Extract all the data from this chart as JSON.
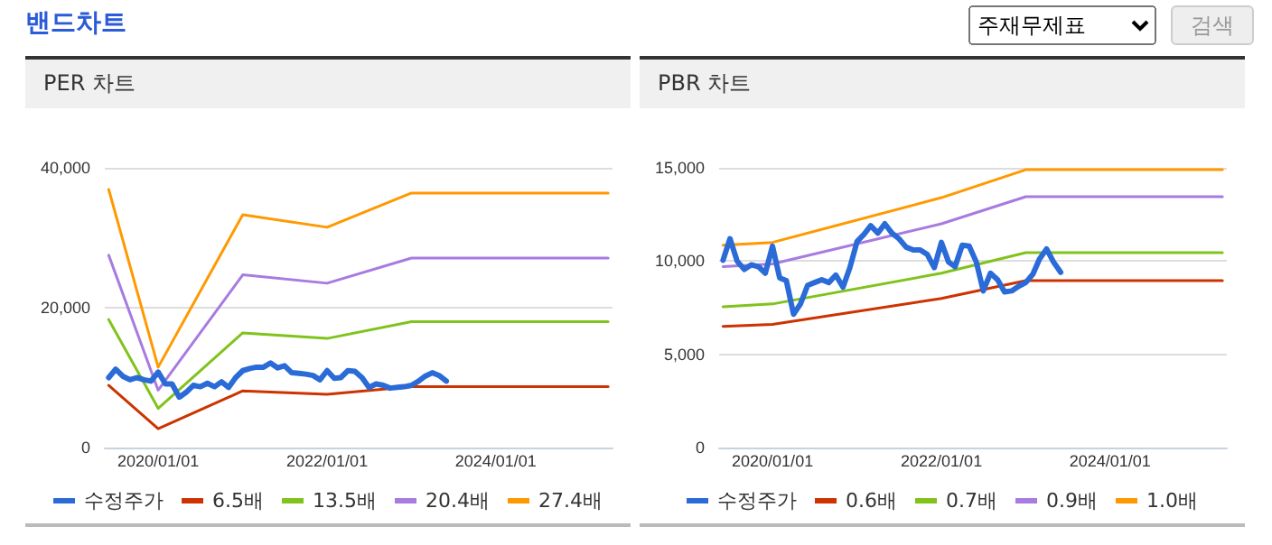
{
  "chart_data": [
    {
      "type": "other",
      "title": "밴드차트",
      "annotations": [
        "주재무제표",
        "검색"
      ]
    },
    {
      "type": "line",
      "title": "PER 차트",
      "legend": "bottom",
      "grid": "y",
      "marker": "none",
      "line_style": "solid",
      "xlim": [
        "2019-05-15",
        "2025-05-20"
      ],
      "xticks": [
        {
          "value": "2020-01-01",
          "label": "2020/01/01"
        },
        {
          "value": "2022-01-01",
          "label": "2022/01/01"
        },
        {
          "value": "2024-01-01",
          "label": "2024/01/01"
        }
      ],
      "ylim": [
        0,
        40000
      ],
      "yticks": [
        0,
        {
          "value": 20000,
          "label": "20,000"
        },
        {
          "value": 40000,
          "label": "40,000"
        }
      ],
      "series": [
        {
          "name": "수정주가",
          "color": "#2a6bd8",
          "x": [
            "2019-06",
            "2019-07",
            "2019-08",
            "2019-09",
            "2019-10",
            "2019-11",
            "2019-12",
            "2020-01",
            "2020-02",
            "2020-03",
            "2020-04",
            "2020-05",
            "2020-06",
            "2020-07",
            "2020-08",
            "2020-09",
            "2020-10",
            "2020-11",
            "2020-12",
            "2021-01",
            "2021-02",
            "2021-03",
            "2021-04",
            "2021-05",
            "2021-06",
            "2021-07",
            "2021-08",
            "2021-09",
            "2021-10",
            "2021-11",
            "2021-12",
            "2022-01",
            "2022-02",
            "2022-03",
            "2022-04",
            "2022-05",
            "2022-06",
            "2022-07",
            "2022-08",
            "2022-09",
            "2022-10",
            "2022-11",
            "2022-12",
            "2023-01",
            "2023-02",
            "2023-03",
            "2023-04",
            "2023-05",
            "2023-06"
          ],
          "values": [
            10000,
            11200,
            10200,
            9700,
            10000,
            9700,
            9500,
            10800,
            9100,
            9100,
            7200,
            7900,
            8900,
            8700,
            9200,
            8700,
            9400,
            8600,
            10000,
            11000,
            11300,
            11500,
            11500,
            12100,
            11400,
            11700,
            10700,
            10600,
            10500,
            10300,
            9700,
            11000,
            9900,
            10000,
            11000,
            10900,
            10000,
            8600,
            9100,
            8900,
            8500,
            8600,
            8700,
            8900,
            9500,
            10200,
            10700,
            10300,
            9500
          ]
        },
        {
          "name": "6.5배",
          "color": "#cc3300",
          "x": [
            "2019-06",
            "2020-01",
            "2021-01",
            "2022-01",
            "2023-01",
            "2025-05"
          ],
          "values": [
            8900,
            2700,
            8100,
            7600,
            8700,
            8700
          ]
        },
        {
          "name": "13.5배",
          "color": "#80c31c",
          "x": [
            "2019-06",
            "2020-01",
            "2021-01",
            "2022-01",
            "2023-01",
            "2025-05"
          ],
          "values": [
            18300,
            5600,
            16400,
            15600,
            18000,
            18000
          ]
        },
        {
          "name": "20.4배",
          "color": "#a77be0",
          "x": [
            "2019-06",
            "2020-01",
            "2021-01",
            "2022-01",
            "2023-01",
            "2025-05"
          ],
          "values": [
            27500,
            8200,
            24700,
            23500,
            27100,
            27100
          ]
        },
        {
          "name": "27.4배",
          "color": "#ff9900",
          "x": [
            "2019-06",
            "2020-01",
            "2021-01",
            "2022-01",
            "2023-01",
            "2025-05"
          ],
          "values": [
            36900,
            11500,
            33300,
            31500,
            36400,
            36400
          ]
        }
      ]
    },
    {
      "type": "line",
      "title": "PBR 차트",
      "legend": "bottom",
      "grid": "y",
      "marker": "none",
      "line_style": "solid",
      "xlim": [
        "2019-05-15",
        "2025-05-20"
      ],
      "xticks": [
        {
          "value": "2020-01-01",
          "label": "2020/01/01"
        },
        {
          "value": "2022-01-01",
          "label": "2022/01/01"
        },
        {
          "value": "2024-01-01",
          "label": "2024/01/01"
        }
      ],
      "ylim": [
        0,
        15000
      ],
      "yticks": [
        0,
        {
          "value": 5000,
          "label": "5,000"
        },
        {
          "value": 10000,
          "label": "10,000"
        },
        {
          "value": 15000,
          "label": "15,000"
        }
      ],
      "series": [
        {
          "name": "수정주가",
          "color": "#2a6bd8",
          "x": [
            "2019-06",
            "2019-07",
            "2019-08",
            "2019-09",
            "2019-10",
            "2019-11",
            "2019-12",
            "2020-01",
            "2020-02",
            "2020-03",
            "2020-04",
            "2020-05",
            "2020-06",
            "2020-07",
            "2020-08",
            "2020-09",
            "2020-10",
            "2020-11",
            "2020-12",
            "2021-01",
            "2021-02",
            "2021-03",
            "2021-04",
            "2021-05",
            "2021-06",
            "2021-07",
            "2021-08",
            "2021-09",
            "2021-10",
            "2021-11",
            "2021-12",
            "2022-01",
            "2022-02",
            "2022-03",
            "2022-04",
            "2022-05",
            "2022-06",
            "2022-07",
            "2022-08",
            "2022-09",
            "2022-10",
            "2022-11",
            "2022-12",
            "2023-01",
            "2023-02",
            "2023-03",
            "2023-04",
            "2023-05",
            "2023-06"
          ],
          "values": [
            10050,
            11200,
            10000,
            9550,
            9800,
            9700,
            9350,
            10800,
            9100,
            8950,
            7150,
            7700,
            8700,
            8850,
            9000,
            8850,
            9250,
            8600,
            9650,
            11050,
            11450,
            11900,
            11500,
            12000,
            11500,
            11200,
            10750,
            10600,
            10600,
            10350,
            9650,
            11000,
            9950,
            9700,
            10850,
            10800,
            9950,
            8400,
            9350,
            9000,
            8350,
            8400,
            8650,
            8850,
            9300,
            10100,
            10650,
            9950,
            9400
          ]
        },
        {
          "name": "0.6배",
          "color": "#cc3300",
          "x": [
            "2019-06",
            "2020-01",
            "2022-01",
            "2023-01",
            "2025-05"
          ],
          "values": [
            6500,
            6600,
            8000,
            8950,
            8950
          ]
        },
        {
          "name": "0.7배",
          "color": "#80c31c",
          "x": [
            "2019-06",
            "2020-01",
            "2022-01",
            "2023-01",
            "2025-05"
          ],
          "values": [
            7550,
            7700,
            9350,
            10450,
            10450
          ]
        },
        {
          "name": "0.9배",
          "color": "#a77be0",
          "x": [
            "2019-06",
            "2020-01",
            "2022-01",
            "2023-01",
            "2025-05"
          ],
          "values": [
            9700,
            9850,
            12000,
            13450,
            13450
          ]
        },
        {
          "name": "1.0배",
          "color": "#ff9900",
          "x": [
            "2019-06",
            "2020-01",
            "2022-01",
            "2023-01",
            "2025-05"
          ],
          "values": [
            10850,
            11000,
            13400,
            14900,
            14900
          ]
        }
      ]
    }
  ]
}
